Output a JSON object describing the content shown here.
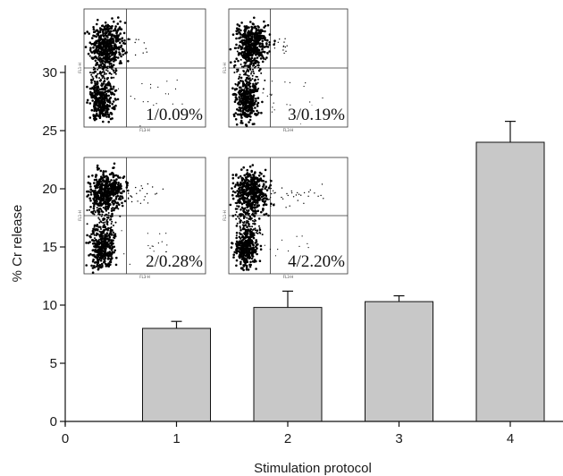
{
  "chart_data": {
    "type": "bar",
    "title": "",
    "xlabel": "Stimulation protocol",
    "ylabel": "% Cr release",
    "categories": [
      "1",
      "2",
      "3",
      "4"
    ],
    "values": [
      8.0,
      9.8,
      10.3,
      24.0
    ],
    "errors": [
      0.6,
      1.4,
      0.5,
      1.8
    ],
    "xlim": [
      0,
      4.5
    ],
    "ylim": [
      0,
      30
    ],
    "yticks": [
      0,
      5,
      10,
      15,
      20,
      25,
      30
    ],
    "xticks": [
      0,
      1,
      2,
      3,
      4
    ],
    "grid": false,
    "bar_color": "#c8c8c8",
    "insets": [
      {
        "label": "1/0.09%",
        "quadrant_axis_labels": {
          "x": "FL3-H",
          "y": "FL1-H"
        }
      },
      {
        "label": "3/0.19%",
        "quadrant_axis_labels": {
          "x": "FL3-H",
          "y": "FL1-H"
        }
      },
      {
        "label": "2/0.28%",
        "quadrant_axis_labels": {
          "x": "FL3-H",
          "y": "FL1-H"
        }
      },
      {
        "label": "4/2.20%",
        "quadrant_axis_labels": {
          "x": "FL3-H",
          "y": "FL1-H"
        }
      }
    ]
  }
}
